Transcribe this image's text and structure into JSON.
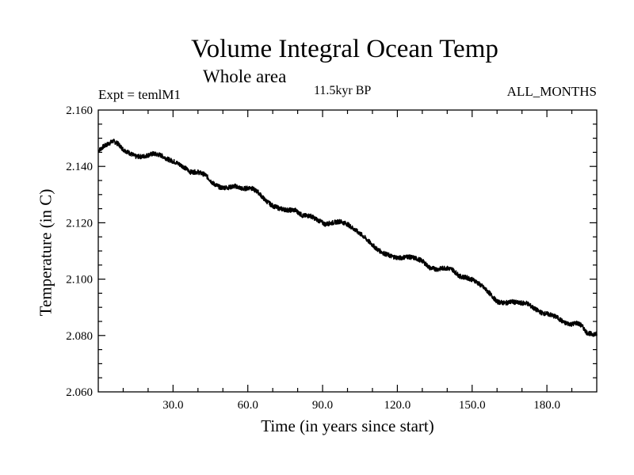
{
  "header": {
    "title": "Volume Integral Ocean Temp",
    "subtitle": "Whole area",
    "experiment": "Expt = temlM1",
    "period": "11.5kyr BP",
    "months": "ALL_MONTHS"
  },
  "chart_data": {
    "type": "line",
    "title": "Volume Integral Ocean Temp",
    "subtitle": "Whole area",
    "xlabel": "Time (in years since start)",
    "ylabel": "Temperature (in C)",
    "xlim": [
      0,
      200
    ],
    "ylim": [
      2.06,
      2.16
    ],
    "xticks": [
      30,
      60,
      90,
      120,
      150,
      180
    ],
    "xtick_labels": [
      "30.0",
      "60.0",
      "90.0",
      "120.0",
      "150.0",
      "180.0"
    ],
    "yticks": [
      2.06,
      2.08,
      2.1,
      2.12,
      2.14,
      2.16
    ],
    "ytick_labels": [
      "2.060",
      "2.080",
      "2.100",
      "2.120",
      "2.140",
      "2.160"
    ],
    "grid": false,
    "series": [
      {
        "name": "Volume Integral Ocean Temp",
        "color": "#000000",
        "x": [
          0,
          2,
          4,
          6,
          8,
          10,
          12,
          15,
          18,
          22,
          25,
          28,
          31,
          34,
          37,
          40,
          43,
          46,
          49,
          52,
          55,
          58,
          61,
          64,
          67,
          70,
          73,
          76,
          79,
          82,
          85,
          88,
          91,
          94,
          97,
          100,
          103,
          106,
          109,
          112,
          115,
          118,
          121,
          124,
          127,
          130,
          133,
          136,
          139,
          142,
          145,
          148,
          151,
          154,
          157,
          160,
          163,
          166,
          169,
          172,
          175,
          178,
          181,
          184,
          187,
          190,
          192,
          194,
          196,
          198,
          200
        ],
        "y": [
          2.1455,
          2.147,
          2.148,
          2.149,
          2.148,
          2.146,
          2.145,
          2.1435,
          2.1435,
          2.1445,
          2.144,
          2.1425,
          2.1415,
          2.14,
          2.138,
          2.138,
          2.137,
          2.134,
          2.1325,
          2.1325,
          2.133,
          2.132,
          2.1325,
          2.131,
          2.128,
          2.126,
          2.125,
          2.1245,
          2.1245,
          2.1225,
          2.1225,
          2.121,
          2.1195,
          2.12,
          2.1205,
          2.1195,
          2.1175,
          2.1155,
          2.113,
          2.1105,
          2.109,
          2.108,
          2.1075,
          2.108,
          2.1075,
          2.1065,
          2.104,
          2.1035,
          2.104,
          2.1035,
          2.101,
          2.1005,
          2.0995,
          2.0975,
          2.095,
          2.092,
          2.0915,
          2.092,
          2.0915,
          2.0915,
          2.0895,
          2.088,
          2.0875,
          2.0865,
          2.0845,
          2.084,
          2.0845,
          2.0835,
          2.081,
          2.0805,
          2.0805
        ]
      }
    ]
  }
}
